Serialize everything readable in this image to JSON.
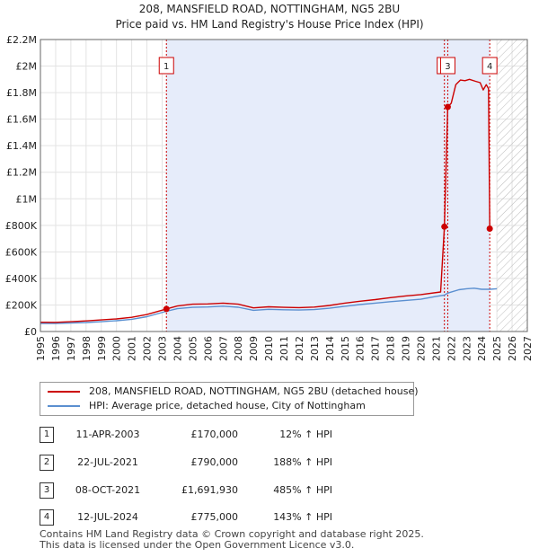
{
  "chart_data": {
    "type": "line",
    "title": "208, MANSFIELD ROAD, NOTTINGHAM, NG5 2BU",
    "subtitle": "Price paid vs. HM Land Registry's House Price Index (HPI)",
    "xlabel": "",
    "ylabel": "",
    "xlim": [
      1995,
      2027
    ],
    "ylim": [
      0,
      2200000
    ],
    "x_ticks": [
      "1995",
      "1996",
      "1997",
      "1998",
      "1999",
      "2000",
      "2001",
      "2002",
      "2003",
      "2004",
      "2005",
      "2006",
      "2007",
      "2008",
      "2009",
      "2010",
      "2011",
      "2012",
      "2013",
      "2014",
      "2015",
      "2016",
      "2017",
      "2018",
      "2019",
      "2020",
      "2021",
      "2022",
      "2023",
      "2024",
      "2025",
      "2026",
      "2027"
    ],
    "y_ticks": [
      {
        "value": 0,
        "label": "£0"
      },
      {
        "value": 200000,
        "label": "£200K"
      },
      {
        "value": 400000,
        "label": "£400K"
      },
      {
        "value": 600000,
        "label": "£600K"
      },
      {
        "value": 800000,
        "label": "£800K"
      },
      {
        "value": 1000000,
        "label": "£1M"
      },
      {
        "value": 1200000,
        "label": "£1.2M"
      },
      {
        "value": 1400000,
        "label": "£1.4M"
      },
      {
        "value": 1600000,
        "label": "£1.6M"
      },
      {
        "value": 1800000,
        "label": "£1.8M"
      },
      {
        "value": 2000000,
        "label": "£2M"
      },
      {
        "value": 2200000,
        "label": "£2.2M"
      }
    ],
    "highlight_range": [
      2003.28,
      2024.53
    ],
    "future_start": 2025.0,
    "series": [
      {
        "name": "208, MANSFIELD ROAD, NOTTINGHAM, NG5 2BU (detached house)",
        "color": "#cc0000",
        "points": [
          [
            1995.0,
            70000
          ],
          [
            1996.0,
            69000
          ],
          [
            1997.0,
            74000
          ],
          [
            1998.0,
            80000
          ],
          [
            1999.0,
            87000
          ],
          [
            2000.0,
            95000
          ],
          [
            2001.0,
            107000
          ],
          [
            2002.0,
            128000
          ],
          [
            2003.28,
            170000
          ],
          [
            2004.0,
            192000
          ],
          [
            2005.0,
            206000
          ],
          [
            2006.0,
            208000
          ],
          [
            2007.0,
            214000
          ],
          [
            2008.0,
            206000
          ],
          [
            2009.0,
            178000
          ],
          [
            2010.0,
            186000
          ],
          [
            2011.0,
            182000
          ],
          [
            2012.0,
            180000
          ],
          [
            2013.0,
            184000
          ],
          [
            2014.0,
            196000
          ],
          [
            2015.0,
            214000
          ],
          [
            2016.0,
            228000
          ],
          [
            2017.0,
            240000
          ],
          [
            2018.0,
            255000
          ],
          [
            2019.0,
            268000
          ],
          [
            2020.0,
            278000
          ],
          [
            2021.3,
            298000
          ],
          [
            2021.55,
            790000
          ],
          [
            2021.77,
            1691930
          ],
          [
            2022.0,
            1720000
          ],
          [
            2022.3,
            1860000
          ],
          [
            2022.6,
            1895000
          ],
          [
            2022.9,
            1890000
          ],
          [
            2023.2,
            1900000
          ],
          [
            2023.6,
            1885000
          ],
          [
            2023.9,
            1875000
          ],
          [
            2024.1,
            1820000
          ],
          [
            2024.3,
            1860000
          ],
          [
            2024.45,
            1830000
          ],
          [
            2024.53,
            775000
          ],
          [
            2024.7,
            780000
          ]
        ]
      },
      {
        "name": "HPI: Average price, detached house, City of Nottingham",
        "color": "#5b8fd0",
        "points": [
          [
            1995.0,
            60000
          ],
          [
            1996.0,
            61000
          ],
          [
            1997.0,
            64000
          ],
          [
            1998.0,
            68000
          ],
          [
            1999.0,
            74000
          ],
          [
            2000.0,
            81000
          ],
          [
            2001.0,
            92000
          ],
          [
            2002.0,
            112000
          ],
          [
            2003.28,
            152000
          ],
          [
            2004.0,
            172000
          ],
          [
            2005.0,
            182000
          ],
          [
            2006.0,
            185000
          ],
          [
            2007.0,
            191000
          ],
          [
            2008.0,
            183000
          ],
          [
            2009.0,
            160000
          ],
          [
            2010.0,
            167000
          ],
          [
            2011.0,
            164000
          ],
          [
            2012.0,
            162000
          ],
          [
            2013.0,
            165000
          ],
          [
            2014.0,
            175000
          ],
          [
            2015.0,
            190000
          ],
          [
            2016.0,
            203000
          ],
          [
            2017.0,
            214000
          ],
          [
            2018.0,
            225000
          ],
          [
            2019.0,
            234000
          ],
          [
            2020.0,
            243000
          ],
          [
            2021.0,
            265000
          ],
          [
            2021.55,
            274000
          ],
          [
            2021.77,
            289000
          ],
          [
            2022.0,
            297000
          ],
          [
            2022.5,
            315000
          ],
          [
            2023.0,
            322000
          ],
          [
            2023.5,
            326000
          ],
          [
            2024.0,
            318000
          ],
          [
            2024.53,
            318000
          ],
          [
            2025.0,
            322000
          ]
        ]
      }
    ],
    "sales": [
      {
        "label": "1",
        "x": 2003.28,
        "value": 170000
      },
      {
        "label": "2",
        "x": 2021.55,
        "value": 790000
      },
      {
        "label": "3",
        "x": 2021.77,
        "value": 1691930
      },
      {
        "label": "4",
        "x": 2024.53,
        "value": 775000
      }
    ]
  },
  "legend": {
    "property": "208, MANSFIELD ROAD, NOTTINGHAM, NG5 2BU (detached house)",
    "hpi": "HPI: Average price, detached house, City of Nottingham",
    "property_color": "#cc0000",
    "hpi_color": "#5b8fd0"
  },
  "transactions": [
    {
      "num": "1",
      "date": "11-APR-2003",
      "price": "£170,000",
      "hpi": "12% ↑ HPI"
    },
    {
      "num": "2",
      "date": "22-JUL-2021",
      "price": "£790,000",
      "hpi": "188% ↑ HPI"
    },
    {
      "num": "3",
      "date": "08-OCT-2021",
      "price": "£1,691,930",
      "hpi": "485% ↑ HPI"
    },
    {
      "num": "4",
      "date": "12-JUL-2024",
      "price": "£775,000",
      "hpi": "143% ↑ HPI"
    }
  ],
  "footer": {
    "line1": "Contains HM Land Registry data © Crown copyright and database right 2025.",
    "line2": "This data is licensed under the Open Government Licence v3.0."
  }
}
